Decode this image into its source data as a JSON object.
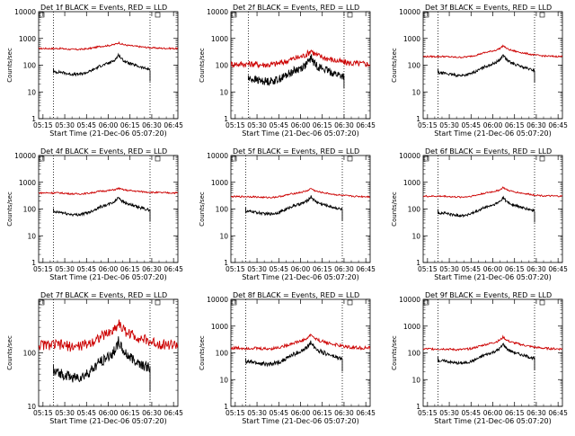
{
  "chart_data": [
    {
      "type": "line",
      "title": "Det 1f BLACK = Events, RED = LLD",
      "xlabel": "Start Time (21-Dec-06 05:07:20)",
      "ylabel": "Counts/sec",
      "yscale": "log",
      "ylim": [
        1,
        10000
      ],
      "xlim": [
        5.2,
        6.8
      ],
      "x_ticks": [
        "05:15",
        "05:30",
        "05:45",
        "06:00",
        "06:15",
        "06:30",
        "06:45"
      ],
      "y_ticks": [
        "1",
        "10",
        "100",
        "1000",
        "10000"
      ],
      "vlines": [
        5.37,
        6.48
      ],
      "series": [
        {
          "color": "#cc0000",
          "start": 5.2,
          "end": 6.8,
          "base": 420,
          "peak": 700,
          "noise": 0.03
        },
        {
          "color": "#000000",
          "start": 5.37,
          "end": 6.48,
          "base": 55,
          "peak": 250,
          "noise": 0.05
        }
      ]
    },
    {
      "type": "line",
      "title": "Det 2f BLACK = Events, RED = LLD",
      "xlabel": "Start Time (21-Dec-06 05:07:20)",
      "ylabel": "Counts/sec",
      "yscale": "log",
      "ylim": [
        1,
        10000
      ],
      "xlim": [
        5.2,
        6.8
      ],
      "x_ticks": [
        "05:15",
        "05:30",
        "05:45",
        "06:00",
        "06:15",
        "06:30",
        "06:45"
      ],
      "y_ticks": [
        "1",
        "10",
        "100",
        "1000",
        "10000"
      ],
      "vlines": [
        5.4,
        6.5
      ],
      "series": [
        {
          "color": "#cc0000",
          "start": 5.2,
          "end": 6.8,
          "base": 110,
          "peak": 380,
          "noise": 0.12
        },
        {
          "color": "#000000",
          "start": 5.4,
          "end": 6.5,
          "base": 30,
          "peak": 200,
          "noise": 0.15
        }
      ]
    },
    {
      "type": "line",
      "title": "Det 3f BLACK = Events, RED = LLD",
      "xlabel": "Start Time (21-Dec-06 05:07:20)",
      "ylabel": "Counts/sec",
      "yscale": "log",
      "ylim": [
        1,
        10000
      ],
      "xlim": [
        5.2,
        6.8
      ],
      "x_ticks": [
        "05:15",
        "05:30",
        "05:45",
        "06:00",
        "06:15",
        "06:30",
        "06:45"
      ],
      "y_ticks": [
        "1",
        "10",
        "100",
        "1000",
        "10000"
      ],
      "vlines": [
        5.37,
        6.48
      ],
      "series": [
        {
          "color": "#cc0000",
          "start": 5.2,
          "end": 6.8,
          "base": 210,
          "peak": 550,
          "noise": 0.03
        },
        {
          "color": "#000000",
          "start": 5.37,
          "end": 6.48,
          "base": 50,
          "peak": 250,
          "noise": 0.05
        }
      ]
    },
    {
      "type": "line",
      "title": "Det 4f BLACK = Events, RED = LLD",
      "xlabel": "Start Time (21-Dec-06 05:07:20)",
      "ylabel": "Counts/sec",
      "yscale": "log",
      "ylim": [
        1,
        10000
      ],
      "xlim": [
        5.2,
        6.8
      ],
      "x_ticks": [
        "05:15",
        "05:30",
        "05:45",
        "06:00",
        "06:15",
        "06:30",
        "06:45"
      ],
      "y_ticks": [
        "1",
        "10",
        "100",
        "1000",
        "10000"
      ],
      "vlines": [
        5.37,
        6.48
      ],
      "series": [
        {
          "color": "#cc0000",
          "start": 5.2,
          "end": 6.8,
          "base": 400,
          "peak": 600,
          "noise": 0.03
        },
        {
          "color": "#000000",
          "start": 5.37,
          "end": 6.48,
          "base": 75,
          "peak": 290,
          "noise": 0.05
        }
      ]
    },
    {
      "type": "line",
      "title": "Det 5f BLACK = Events, RED = LLD",
      "xlabel": "Start Time (21-Dec-06 05:07:20)",
      "ylabel": "Counts/sec",
      "yscale": "log",
      "ylim": [
        1,
        10000
      ],
      "xlim": [
        5.2,
        6.8
      ],
      "x_ticks": [
        "05:15",
        "05:30",
        "05:45",
        "06:00",
        "06:15",
        "06:30",
        "06:45"
      ],
      "y_ticks": [
        "1",
        "10",
        "100",
        "1000",
        "10000"
      ],
      "vlines": [
        5.37,
        6.48
      ],
      "series": [
        {
          "color": "#cc0000",
          "start": 5.2,
          "end": 6.8,
          "base": 290,
          "peak": 600,
          "noise": 0.03
        },
        {
          "color": "#000000",
          "start": 5.37,
          "end": 6.48,
          "base": 80,
          "peak": 300,
          "noise": 0.05
        }
      ]
    },
    {
      "type": "line",
      "title": "Det 6f BLACK = Events, RED = LLD",
      "xlabel": "Start Time (21-Dec-06 05:07:20)",
      "ylabel": "Counts/sec",
      "yscale": "log",
      "ylim": [
        1,
        10000
      ],
      "xlim": [
        5.2,
        6.8
      ],
      "x_ticks": [
        "05:15",
        "05:30",
        "05:45",
        "06:00",
        "06:15",
        "06:30",
        "06:45"
      ],
      "y_ticks": [
        "1",
        "10",
        "100",
        "1000",
        "10000"
      ],
      "vlines": [
        5.37,
        6.48
      ],
      "series": [
        {
          "color": "#cc0000",
          "start": 5.2,
          "end": 6.8,
          "base": 300,
          "peak": 650,
          "noise": 0.03
        },
        {
          "color": "#000000",
          "start": 5.37,
          "end": 6.48,
          "base": 70,
          "peak": 280,
          "noise": 0.05
        }
      ]
    },
    {
      "type": "line",
      "title": "Det 7f BLACK = Events, RED = LLD",
      "xlabel": "Start Time (21-Dec-06 05:07:20)",
      "ylabel": "Counts/sec",
      "yscale": "log",
      "ylim": [
        10,
        1000
      ],
      "xlim": [
        5.2,
        6.8
      ],
      "x_ticks": [
        "05:15",
        "05:30",
        "05:45",
        "06:00",
        "06:15",
        "06:30",
        "06:45"
      ],
      "y_ticks": [
        "10",
        "100"
      ],
      "vlines": [
        5.37,
        6.48
      ],
      "series": [
        {
          "color": "#cc0000",
          "start": 5.2,
          "end": 6.8,
          "base": 140,
          "peak": 380,
          "noise": 0.1
        },
        {
          "color": "#000000",
          "start": 5.37,
          "end": 6.48,
          "base": 42,
          "peak": 170,
          "noise": 0.1
        }
      ]
    },
    {
      "type": "line",
      "title": "Det 8f BLACK = Events, RED = LLD",
      "xlabel": "Start Time (21-Dec-06 05:07:20)",
      "ylabel": "Counts/sec",
      "yscale": "log",
      "ylim": [
        1,
        10000
      ],
      "xlim": [
        5.2,
        6.8
      ],
      "x_ticks": [
        "05:15",
        "05:30",
        "05:45",
        "06:00",
        "06:15",
        "06:30",
        "06:45"
      ],
      "y_ticks": [
        "1",
        "10",
        "100",
        "1000",
        "10000"
      ],
      "vlines": [
        5.37,
        6.48
      ],
      "series": [
        {
          "color": "#cc0000",
          "start": 5.2,
          "end": 6.8,
          "base": 150,
          "peak": 500,
          "noise": 0.06
        },
        {
          "color": "#000000",
          "start": 5.37,
          "end": 6.48,
          "base": 45,
          "peak": 270,
          "noise": 0.08
        }
      ]
    },
    {
      "type": "line",
      "title": "Det 9f BLACK = Events, RED = LLD",
      "xlabel": "Start Time (21-Dec-06 05:07:20)",
      "ylabel": "Counts/sec",
      "yscale": "log",
      "ylim": [
        1,
        10000
      ],
      "xlim": [
        5.2,
        6.8
      ],
      "x_ticks": [
        "05:15",
        "05:30",
        "05:45",
        "06:00",
        "06:15",
        "06:30",
        "06:45"
      ],
      "y_ticks": [
        "1",
        "10",
        "100",
        "1000",
        "10000"
      ],
      "vlines": [
        5.37,
        6.48
      ],
      "series": [
        {
          "color": "#cc0000",
          "start": 5.2,
          "end": 6.8,
          "base": 140,
          "peak": 400,
          "noise": 0.04
        },
        {
          "color": "#000000",
          "start": 5.37,
          "end": 6.48,
          "base": 50,
          "peak": 220,
          "noise": 0.05
        }
      ]
    }
  ]
}
